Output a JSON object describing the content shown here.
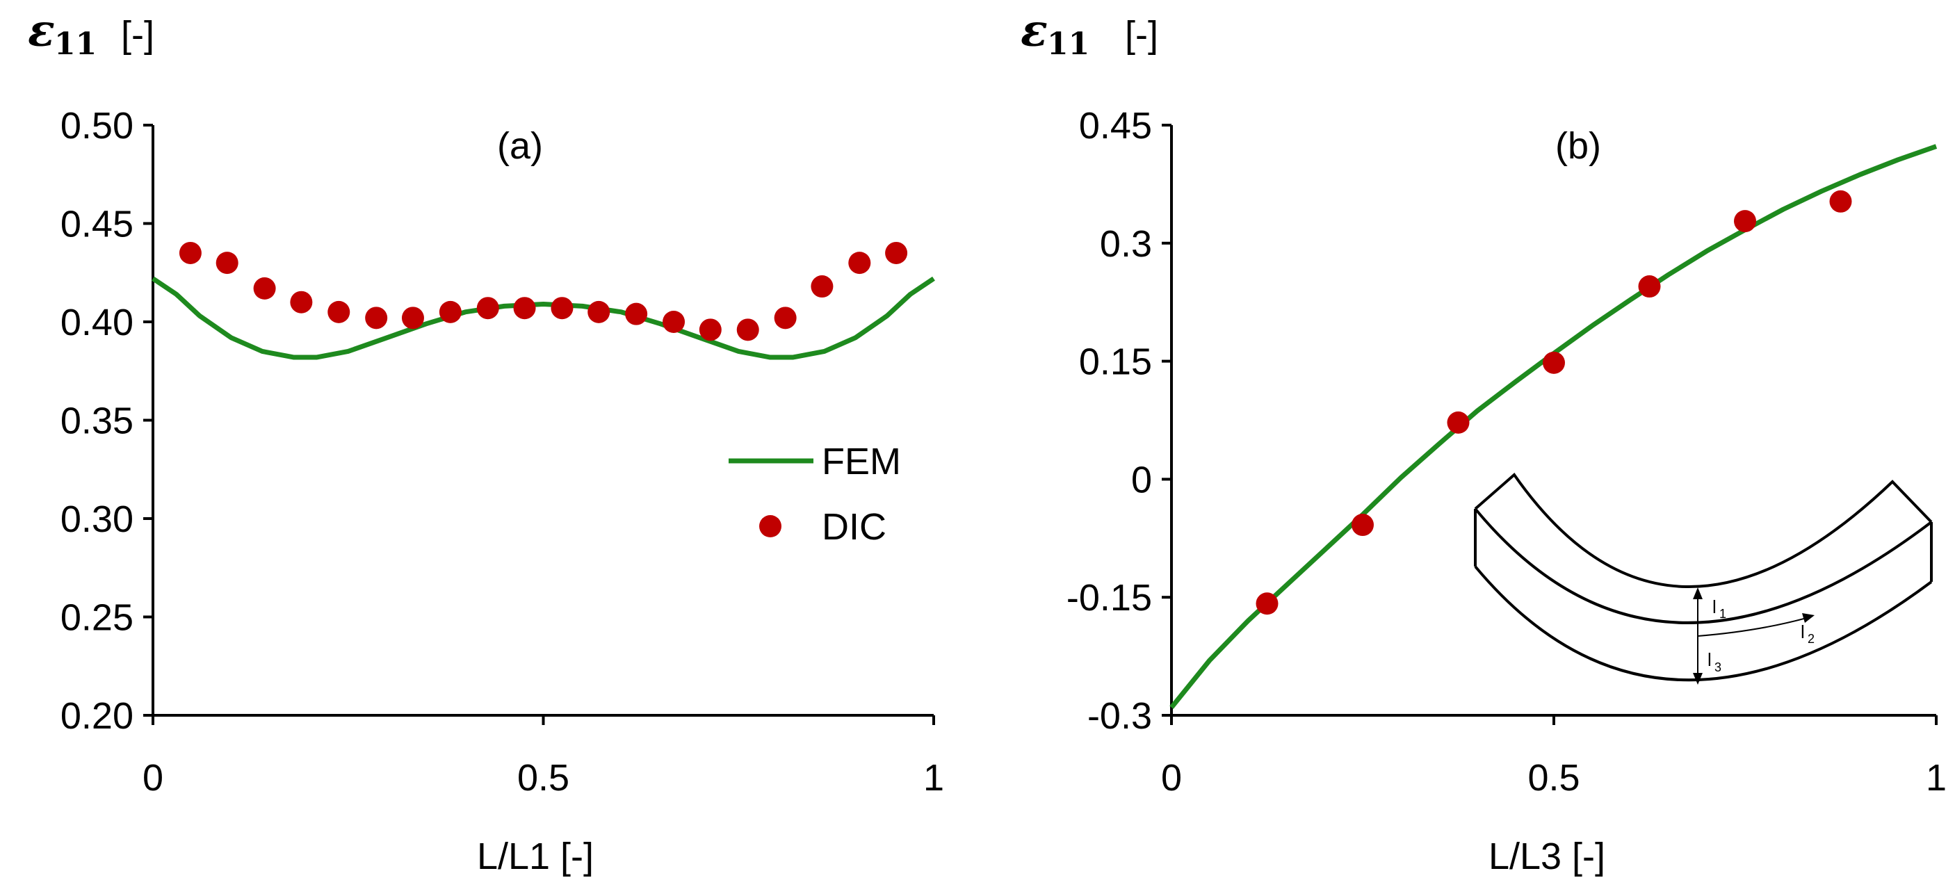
{
  "colors": {
    "fem": "#1e8a1e",
    "dic": "#c00000",
    "axis": "#000000"
  },
  "chart_data": [
    {
      "type": "scatter",
      "panel_label": "(a)",
      "ylabel_symbol": "ε",
      "ylabel_subscript": "11",
      "ylabel_unit": "[-]",
      "xlabel": "L/L1 [-]",
      "xlim": [
        0,
        1
      ],
      "ylim": [
        0.2,
        0.5
      ],
      "xticks": [
        0,
        0.5,
        1
      ],
      "xtick_labels": [
        "0",
        "0.5",
        "1"
      ],
      "yticks": [
        0.2,
        0.25,
        0.3,
        0.35,
        0.4,
        0.45,
        0.5
      ],
      "ytick_labels": [
        "0.20",
        "0.25",
        "0.30",
        "0.35",
        "0.40",
        "0.45",
        "0.50"
      ],
      "legend": {
        "position": "center-right",
        "entries": [
          "FEM",
          "DIC"
        ]
      },
      "series": [
        {
          "name": "FEM",
          "kind": "line",
          "x": [
            0,
            0.03,
            0.06,
            0.1,
            0.14,
            0.18,
            0.21,
            0.25,
            0.3,
            0.35,
            0.4,
            0.45,
            0.5,
            0.55,
            0.6,
            0.65,
            0.7,
            0.75,
            0.79,
            0.82,
            0.86,
            0.9,
            0.94,
            0.97,
            1
          ],
          "y": [
            0.422,
            0.414,
            0.403,
            0.392,
            0.385,
            0.382,
            0.382,
            0.385,
            0.392,
            0.399,
            0.405,
            0.408,
            0.409,
            0.408,
            0.405,
            0.399,
            0.392,
            0.385,
            0.382,
            0.382,
            0.385,
            0.392,
            0.403,
            0.414,
            0.422
          ]
        },
        {
          "name": "DIC",
          "kind": "scatter",
          "x": [
            0.048,
            0.095,
            0.143,
            0.19,
            0.238,
            0.286,
            0.333,
            0.381,
            0.429,
            0.476,
            0.524,
            0.571,
            0.619,
            0.667,
            0.714,
            0.762,
            0.81,
            0.857,
            0.905,
            0.952
          ],
          "y": [
            0.435,
            0.43,
            0.417,
            0.41,
            0.405,
            0.402,
            0.402,
            0.405,
            0.407,
            0.407,
            0.407,
            0.405,
            0.404,
            0.4,
            0.396,
            0.396,
            0.402,
            0.418,
            0.43,
            0.435
          ]
        }
      ]
    },
    {
      "type": "scatter",
      "panel_label": "(b)",
      "ylabel_symbol": "ε",
      "ylabel_subscript": "11",
      "ylabel_unit": "[-]",
      "xlabel": "L/L3 [-]",
      "xlim": [
        0,
        1
      ],
      "ylim": [
        -0.3,
        0.45
      ],
      "xticks": [
        0,
        0.5,
        1
      ],
      "xtick_labels": [
        "0",
        "0.5",
        "1"
      ],
      "yticks": [
        -0.3,
        -0.15,
        0,
        0.15,
        0.3,
        0.45
      ],
      "ytick_labels": [
        "-0.3",
        "-0.15",
        "0",
        "0.15",
        "0.3",
        "0.45"
      ],
      "series": [
        {
          "name": "FEM",
          "kind": "line",
          "x": [
            0,
            0.05,
            0.1,
            0.15,
            0.2,
            0.25,
            0.3,
            0.35,
            0.4,
            0.45,
            0.5,
            0.55,
            0.6,
            0.65,
            0.7,
            0.75,
            0.8,
            0.85,
            0.9,
            0.95,
            1
          ],
          "y": [
            -0.29,
            -0.23,
            -0.18,
            -0.135,
            -0.09,
            -0.045,
            0.002,
            0.045,
            0.087,
            0.124,
            0.16,
            0.195,
            0.228,
            0.26,
            0.29,
            0.317,
            0.343,
            0.366,
            0.387,
            0.406,
            0.423
          ]
        },
        {
          "name": "DIC",
          "kind": "scatter",
          "x": [
            0.125,
            0.25,
            0.375,
            0.5,
            0.625,
            0.75,
            0.875
          ],
          "y": [
            -0.158,
            -0.058,
            0.072,
            0.148,
            0.245,
            0.328,
            0.353
          ]
        }
      ],
      "inset": {
        "labels": [
          "l",
          "l",
          "l"
        ],
        "subscripts": [
          "1",
          "2",
          "3"
        ]
      }
    }
  ]
}
